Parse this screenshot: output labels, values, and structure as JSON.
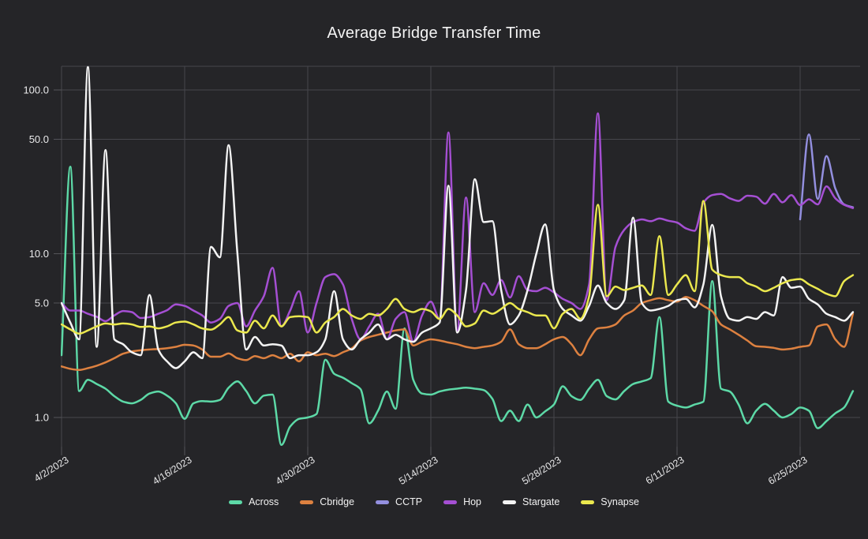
{
  "page": {
    "background": "#252528",
    "grid_color": "#47474c",
    "tick_color": "#55555a",
    "text_color": "#e9e9ea"
  },
  "chart_data": {
    "type": "line",
    "title": "Average Bridge Transfer Time",
    "y_axis": {
      "scale": "log",
      "tick_labels": [
        "100.0",
        "50.0",
        "10.0",
        "5.0",
        "1.0"
      ],
      "tick_values": [
        100,
        50,
        10,
        5,
        1
      ]
    },
    "x_axis": {
      "tick_labels": [
        "4/2/2023",
        "4/16/2023",
        "4/30/2023",
        "5/14/2023",
        "5/28/2023",
        "6/11/2023",
        "6/25/2023"
      ],
      "tick_day_index": [
        0,
        14,
        28,
        42,
        56,
        70,
        84
      ],
      "days_total": 91
    },
    "legend_position": "bottom",
    "grid": true,
    "series": [
      {
        "name": "Across",
        "color": "#5dd9a7",
        "values": [
          2.4,
          34,
          1.45,
          1.7,
          1.6,
          1.5,
          1.35,
          1.25,
          1.22,
          1.28,
          1.4,
          1.44,
          1.36,
          1.22,
          0.98,
          1.22,
          1.26,
          1.25,
          1.28,
          1.52,
          1.66,
          1.45,
          1.22,
          1.36,
          1.38,
          0.68,
          0.88,
          0.98,
          1.0,
          1.05,
          2.25,
          1.85,
          1.75,
          1.62,
          1.49,
          0.92,
          1.1,
          1.44,
          1.13,
          3.5,
          1.7,
          1.4,
          1.38,
          1.44,
          1.48,
          1.5,
          1.52,
          1.5,
          1.47,
          1.3,
          0.95,
          1.1,
          0.95,
          1.2,
          1.0,
          1.09,
          1.2,
          1.55,
          1.35,
          1.28,
          1.5,
          1.7,
          1.35,
          1.29,
          1.45,
          1.6,
          1.66,
          1.74,
          4.1,
          1.25,
          1.18,
          1.15,
          1.2,
          1.25,
          6.8,
          1.5,
          1.44,
          1.2,
          0.92,
          1.1,
          1.21,
          1.1,
          1.0,
          1.05,
          1.15,
          1.1,
          0.86,
          0.95,
          1.06,
          1.15,
          1.45
        ]
      },
      {
        "name": "Cbridge",
        "color": "#dd8140",
        "values": [
          2.05,
          1.98,
          1.95,
          2.0,
          2.07,
          2.17,
          2.3,
          2.45,
          2.53,
          2.57,
          2.6,
          2.62,
          2.65,
          2.7,
          2.78,
          2.75,
          2.6,
          2.35,
          2.35,
          2.46,
          2.3,
          2.24,
          2.37,
          2.3,
          2.4,
          2.3,
          2.45,
          2.2,
          2.5,
          2.4,
          2.45,
          2.37,
          2.5,
          2.64,
          2.95,
          3.1,
          3.2,
          3.3,
          3.4,
          3.45,
          2.75,
          2.9,
          3.0,
          2.95,
          2.87,
          2.8,
          2.7,
          2.65,
          2.7,
          2.75,
          2.9,
          3.45,
          2.8,
          2.65,
          2.65,
          2.8,
          3.0,
          3.1,
          2.8,
          2.4,
          3.0,
          3.5,
          3.55,
          3.7,
          4.2,
          4.5,
          5.0,
          5.2,
          5.35,
          5.2,
          5.1,
          5.45,
          5.2,
          4.8,
          4.45,
          3.7,
          3.45,
          3.2,
          2.95,
          2.72,
          2.7,
          2.66,
          2.6,
          2.63,
          2.7,
          2.75,
          3.6,
          3.7,
          3.0,
          2.7,
          4.3
        ]
      },
      {
        "name": "CCTP",
        "color": "#938fdf",
        "start_day": 84,
        "values": [
          16.2,
          53.5,
          21.6,
          39.5,
          25,
          20,
          19.2
        ]
      },
      {
        "name": "Hop",
        "color": "#a54fd3",
        "values": [
          5.0,
          4.5,
          4.5,
          4.3,
          4.12,
          3.87,
          4.2,
          4.47,
          4.4,
          4.05,
          4.1,
          4.3,
          4.52,
          4.9,
          4.8,
          4.5,
          4.2,
          3.8,
          4.0,
          4.8,
          5.0,
          3.6,
          4.5,
          5.5,
          8.2,
          3.6,
          4.5,
          5.9,
          3.3,
          5.0,
          7.2,
          7.5,
          6.5,
          4.0,
          3.0,
          3.6,
          4.3,
          3.0,
          4.0,
          4.4,
          2.9,
          4.2,
          5.1,
          4.0,
          55,
          3.4,
          22,
          4.4,
          6.6,
          5.6,
          6.9,
          5.4,
          7.3,
          6.0,
          5.9,
          6.2,
          5.8,
          5.3,
          5.0,
          4.6,
          6.5,
          72,
          5.2,
          11,
          14,
          15.6,
          16.2,
          15.8,
          16.4,
          15.9,
          15.5,
          14.3,
          13.8,
          20.5,
          22.8,
          23.2,
          21.8,
          21.0,
          22.6,
          22.3,
          20.2,
          23.2,
          20.6,
          22.8,
          19.8,
          21.5,
          20.0,
          25.8,
          21.8,
          19.9,
          19.0
        ]
      },
      {
        "name": "Stargate",
        "color": "#f4f4f4",
        "values": [
          5.0,
          3.8,
          3.0,
          140,
          2.7,
          43,
          3.0,
          2.8,
          2.5,
          2.4,
          5.6,
          2.6,
          2.2,
          2.0,
          2.2,
          2.5,
          2.3,
          11,
          9.5,
          46,
          10,
          2.6,
          3.1,
          2.75,
          2.8,
          2.75,
          2.3,
          2.4,
          2.4,
          2.5,
          3.0,
          5.9,
          3.0,
          2.6,
          3.0,
          3.3,
          3.7,
          3.0,
          3.2,
          3.0,
          2.9,
          3.3,
          3.5,
          3.8,
          26,
          3.3,
          6.0,
          28.5,
          15.6,
          15.8,
          6.0,
          3.7,
          4.2,
          6.0,
          10,
          15.1,
          6.0,
          4.6,
          4.2,
          3.9,
          4.8,
          6.4,
          5.0,
          4.6,
          5.2,
          16.6,
          5.0,
          4.5,
          4.6,
          4.8,
          5.2,
          5.3,
          4.7,
          6.5,
          15,
          5.5,
          4.0,
          3.9,
          4.1,
          4.0,
          4.4,
          4.2,
          7.2,
          6.2,
          6.3,
          5.3,
          4.9,
          4.3,
          4.1,
          3.9,
          4.4
        ]
      },
      {
        "name": "Synapse",
        "color": "#ebe84e",
        "values": [
          3.7,
          3.45,
          3.25,
          3.4,
          3.6,
          3.75,
          3.7,
          3.75,
          3.7,
          3.57,
          3.6,
          3.5,
          3.6,
          3.8,
          3.85,
          3.7,
          3.5,
          3.44,
          3.7,
          4.1,
          3.4,
          3.3,
          3.9,
          3.5,
          4.2,
          3.6,
          4.1,
          4.15,
          4.1,
          3.3,
          3.8,
          4.1,
          4.6,
          4.2,
          4.0,
          4.3,
          4.2,
          4.6,
          5.3,
          4.6,
          4.4,
          4.6,
          4.45,
          4.0,
          4.6,
          4.2,
          3.6,
          3.75,
          4.5,
          4.3,
          4.6,
          5.0,
          4.6,
          4.4,
          4.2,
          4.2,
          3.5,
          4.3,
          4.6,
          4.0,
          5.5,
          19.9,
          5.5,
          6.3,
          6.0,
          6.2,
          6.4,
          5.6,
          12.8,
          5.6,
          6.5,
          7.4,
          5.9,
          21,
          8.0,
          7.4,
          7.2,
          7.2,
          6.6,
          6.3,
          5.9,
          6.2,
          6.6,
          6.9,
          7.0,
          6.5,
          6.1,
          5.7,
          5.5,
          6.8,
          7.4
        ]
      }
    ]
  }
}
